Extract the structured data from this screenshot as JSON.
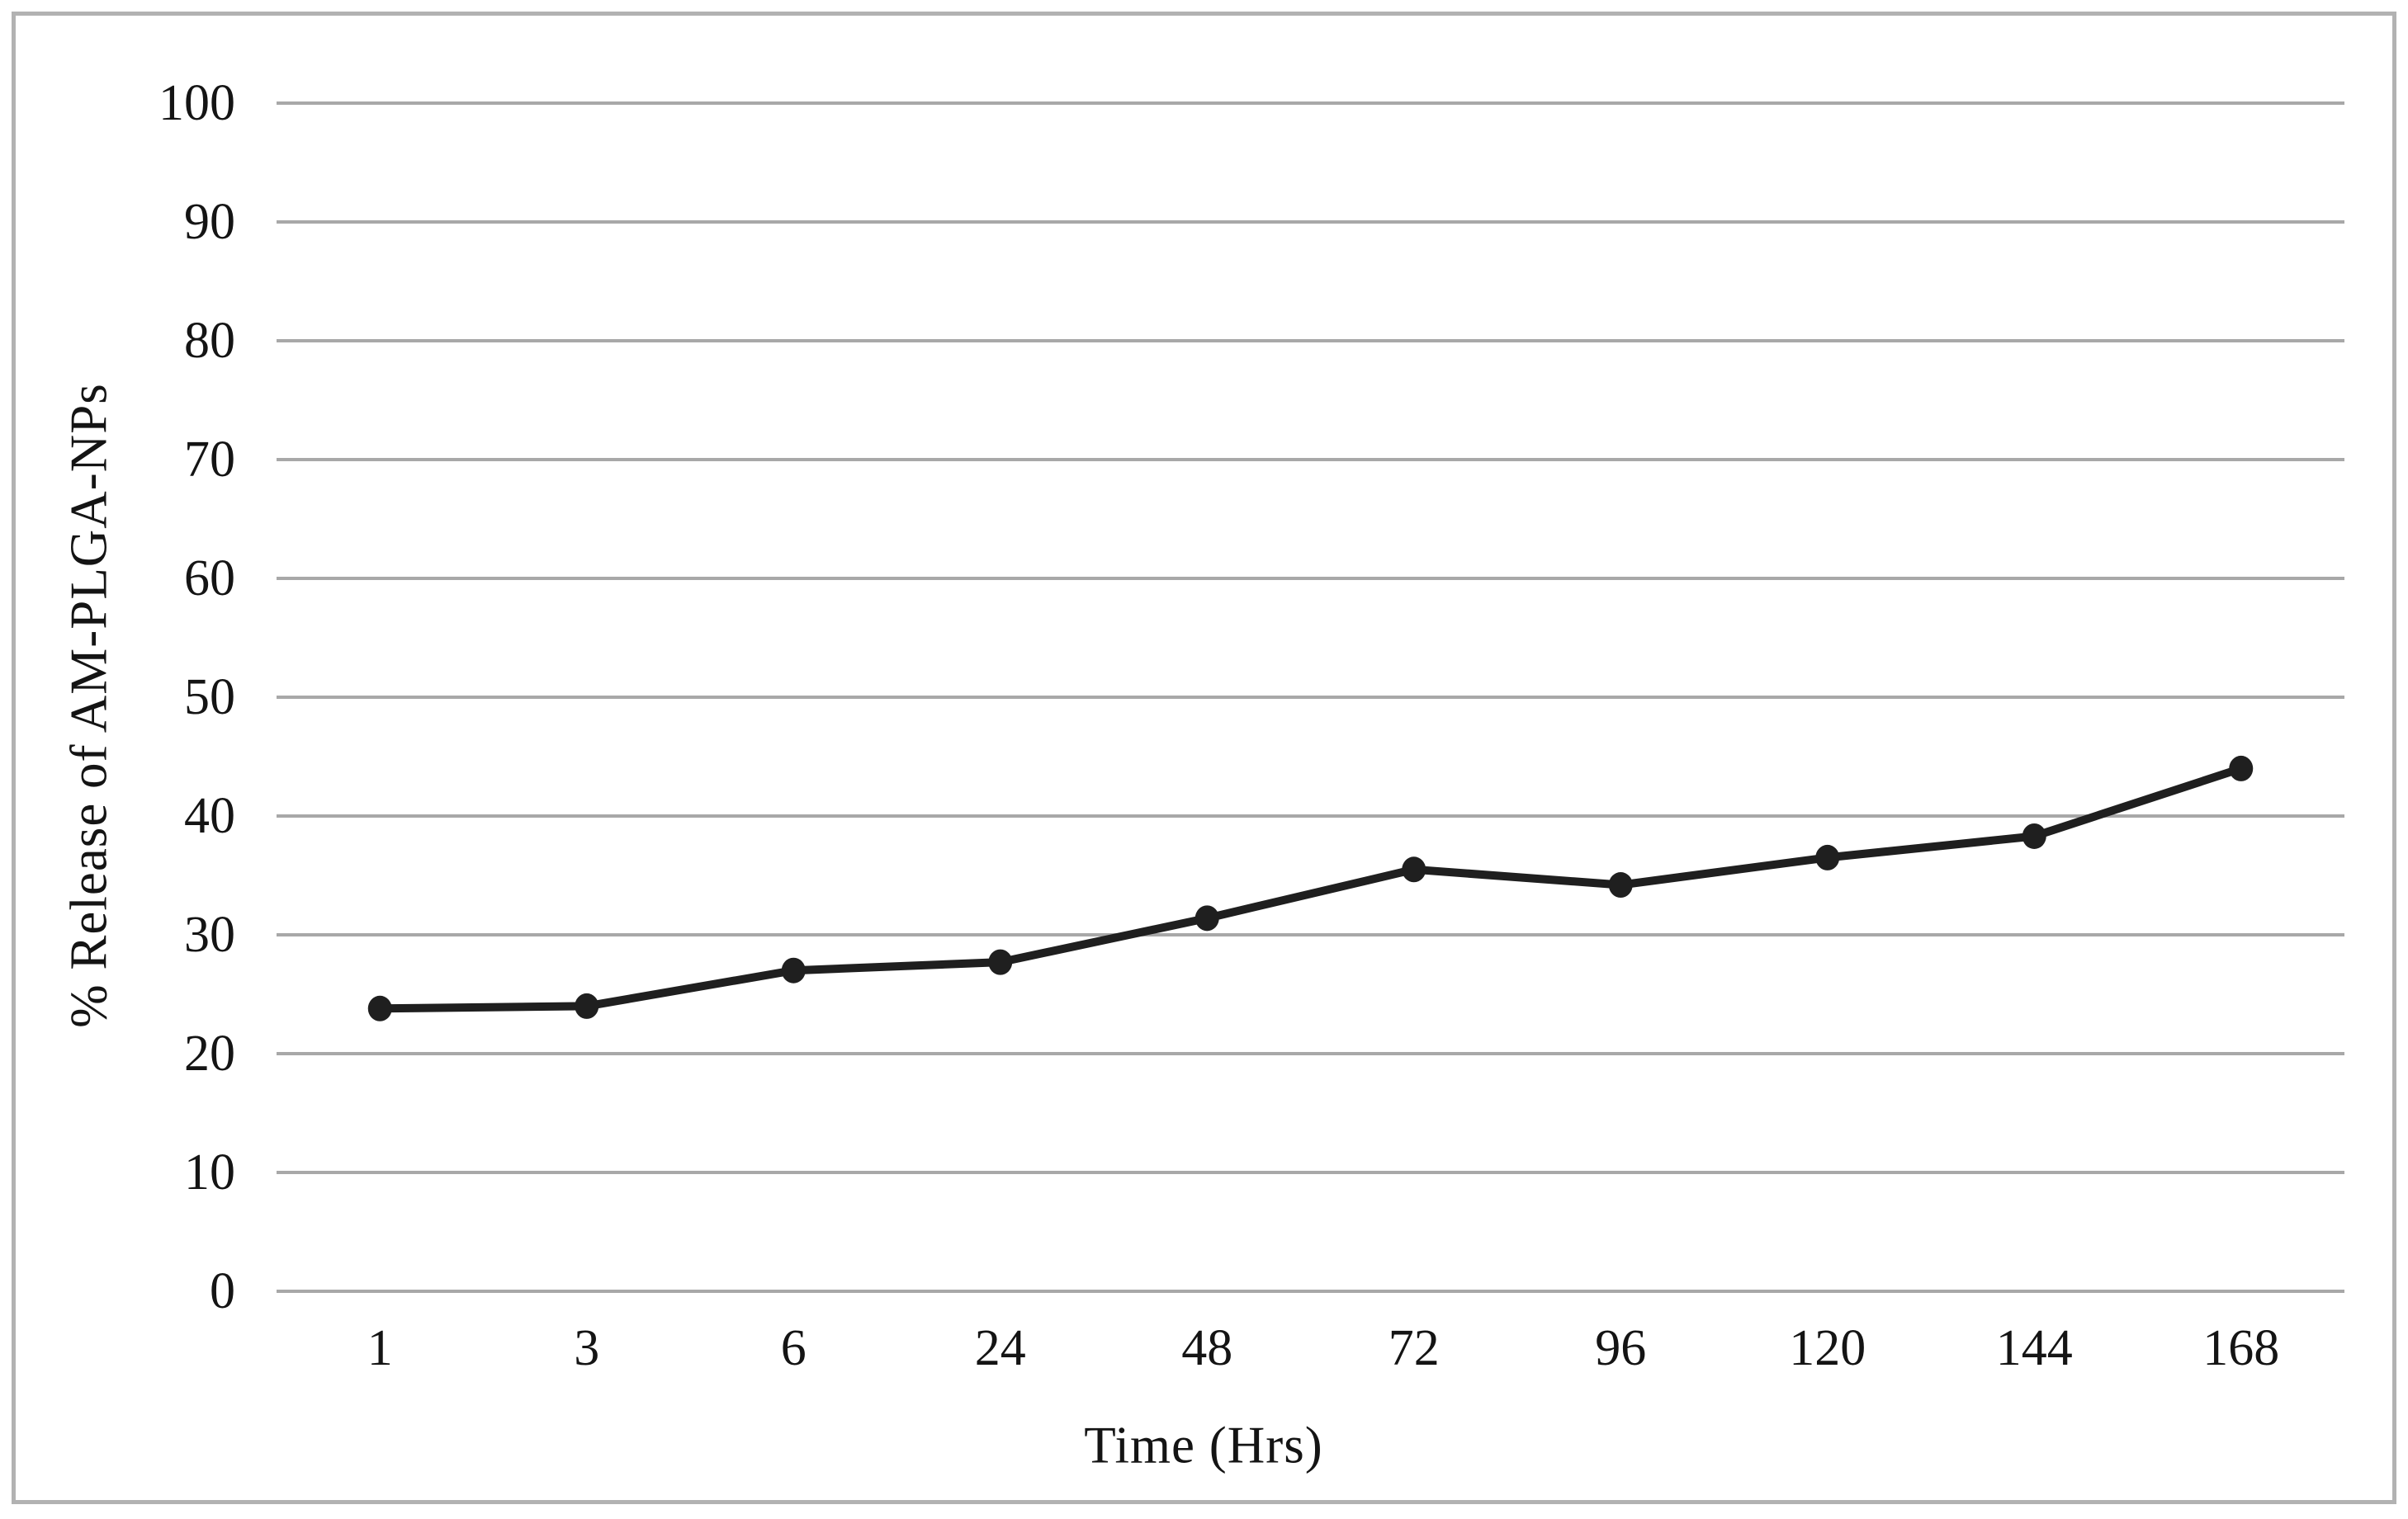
{
  "figure": {
    "background": "#ffffff",
    "border_color": "#b2b2b2"
  },
  "chart_data": {
    "type": "line",
    "title": "",
    "xlabel": "Time (Hrs)",
    "ylabel": "% Release of AM-PLGA-NPs",
    "categories": [
      "1",
      "3",
      "6",
      "24",
      "48",
      "72",
      "96",
      "120",
      "144",
      "168"
    ],
    "series": [
      {
        "name": "% Release of AM-PLGA-NPs",
        "values": [
          23.8,
          24.0,
          27.0,
          27.7,
          31.4,
          35.5,
          34.2,
          36.5,
          38.3,
          44.0
        ],
        "color": "#1f1f1f",
        "marker": "circle"
      }
    ],
    "ylim": [
      0,
      100
    ],
    "yticks": [
      0,
      10,
      20,
      30,
      40,
      50,
      60,
      70,
      80,
      90,
      100
    ],
    "grid": "horizontal",
    "gridline_color": "#a8a8a8",
    "legend": "none"
  }
}
